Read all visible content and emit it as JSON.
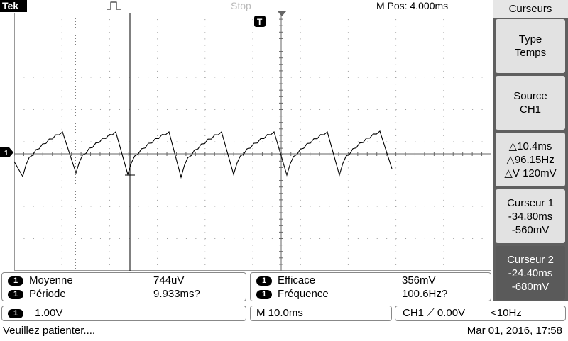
{
  "top": {
    "brand": "Tek",
    "acq_state": "Stop",
    "m_pos": "M Pos: 4.000ms",
    "trigger_marker": "T",
    "channel_marker": "1"
  },
  "menu": {
    "title": "Curseurs",
    "buttons": [
      {
        "lines": [
          "Type",
          "Temps"
        ]
      },
      {
        "lines": [
          "Source",
          "CH1"
        ]
      },
      {
        "lines": [
          "△10.4ms",
          "△96.15Hz",
          "△V 120mV"
        ]
      },
      {
        "lines": [
          "Curseur 1",
          "-34.80ms",
          "-560mV"
        ]
      },
      {
        "lines": [
          "Curseur 2",
          "-24.40ms",
          "-680mV"
        ]
      }
    ]
  },
  "measurements": {
    "left": [
      {
        "ch": "1",
        "label": "Moyenne",
        "value": "744uV"
      },
      {
        "ch": "1",
        "label": "Période",
        "value": "9.933ms?"
      }
    ],
    "right": [
      {
        "ch": "1",
        "label": "Efficace",
        "value": "356mV"
      },
      {
        "ch": "1",
        "label": "Fréquence",
        "value": "100.6Hz?"
      }
    ]
  },
  "status": {
    "ch_badge": "1",
    "volts": "1.00V",
    "timebase": "M 10.0ms",
    "trigger": "CH1 ⟋ 0.00V",
    "trig_freq": "<10Hz",
    "message": "Veuillez patienter....",
    "datetime": "Mar 01, 2016, 17:58"
  },
  "colors": {
    "grid": "#999999",
    "trace": "#000000",
    "menu_bg": "#5f5f5f",
    "menu_btn": "#e2e2e2",
    "menu_btn_active": "#5a5a5a"
  }
}
